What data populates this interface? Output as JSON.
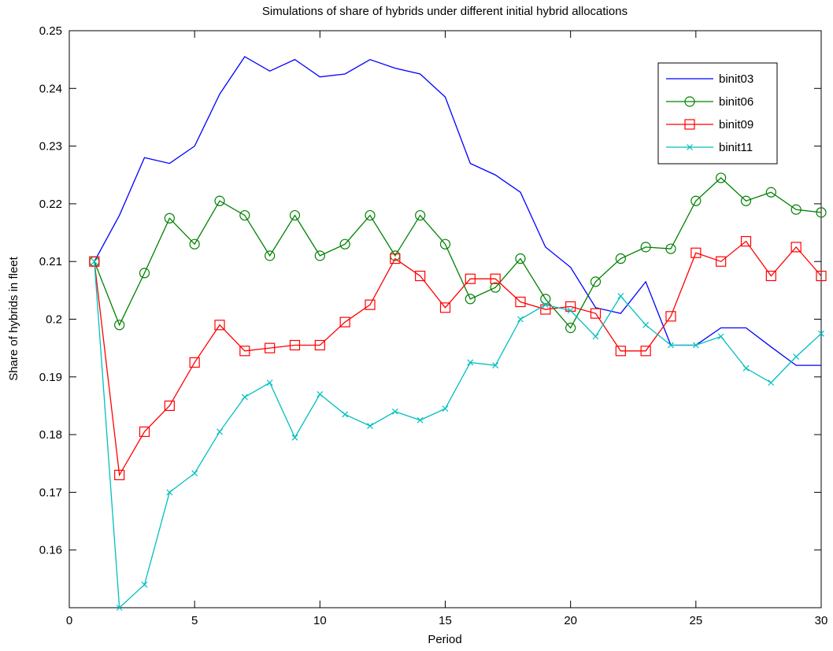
{
  "chart_data": {
    "type": "line",
    "title": "Simulations of share of hybrids under different initial hybrid allocations",
    "xlabel": "Period",
    "ylabel": "Share of hybrids in fleet",
    "xlim": [
      0,
      30
    ],
    "ylim": [
      0.15,
      0.25
    ],
    "xticks": [
      0,
      5,
      10,
      15,
      20,
      25,
      30
    ],
    "xtick_labels": [
      "0",
      "5",
      "10",
      "15",
      "20",
      "25",
      "30"
    ],
    "yticks": [
      0.16,
      0.17,
      0.18,
      0.19,
      0.2,
      0.21,
      0.22,
      0.23,
      0.24,
      0.25
    ],
    "ytick_labels": [
      "0.16",
      "0.17",
      "0.18",
      "0.19",
      "0.2",
      "0.21",
      "0.22",
      "0.23",
      "0.24",
      "0.25"
    ],
    "grid": false,
    "legend_position": "top-right",
    "x": [
      1,
      2,
      3,
      4,
      5,
      6,
      7,
      8,
      9,
      10,
      11,
      12,
      13,
      14,
      15,
      16,
      17,
      18,
      19,
      20,
      21,
      22,
      23,
      24,
      25,
      26,
      27,
      28,
      29,
      30
    ],
    "series": [
      {
        "name": "binit03",
        "color": "#0000ff",
        "marker": "none",
        "values": [
          0.21,
          0.218,
          0.228,
          0.227,
          0.23,
          0.239,
          0.2455,
          0.243,
          0.245,
          0.242,
          0.2425,
          0.245,
          0.2435,
          0.2425,
          0.2385,
          0.227,
          0.225,
          0.222,
          0.2125,
          0.209,
          0.202,
          0.201,
          0.2065,
          0.1955,
          0.1955,
          0.1985,
          0.1985,
          0.1952,
          0.192,
          0.192
        ]
      },
      {
        "name": "binit06",
        "color": "#008000",
        "marker": "circle",
        "values": [
          0.21,
          0.199,
          0.208,
          0.2175,
          0.213,
          0.2205,
          0.218,
          0.211,
          0.218,
          0.211,
          0.213,
          0.218,
          0.211,
          0.218,
          0.213,
          0.2035,
          0.2055,
          0.2105,
          0.2035,
          0.1985,
          0.2065,
          0.2105,
          0.2125,
          0.2122,
          0.2205,
          0.2245,
          0.2205,
          0.222,
          0.219,
          0.2185
        ]
      },
      {
        "name": "binit09",
        "color": "#ff0000",
        "marker": "square",
        "values": [
          0.21,
          0.173,
          0.1805,
          0.185,
          0.1925,
          0.199,
          0.1945,
          0.195,
          0.1955,
          0.1955,
          0.1995,
          0.2025,
          0.2105,
          0.2075,
          0.202,
          0.207,
          0.207,
          0.203,
          0.2017,
          0.2022,
          0.201,
          0.1945,
          0.1945,
          0.2005,
          0.2115,
          0.21,
          0.2135,
          0.2075,
          0.2125,
          0.2075
        ]
      },
      {
        "name": "binit11",
        "color": "#00bfbf",
        "marker": "x",
        "values": [
          0.21,
          0.15,
          0.154,
          0.17,
          0.1733,
          0.1805,
          0.1865,
          0.189,
          0.1795,
          0.187,
          0.1835,
          0.1815,
          0.184,
          0.1825,
          0.1845,
          0.1925,
          0.192,
          0.2,
          0.2025,
          0.2015,
          0.197,
          0.204,
          0.199,
          0.1955,
          0.1955,
          0.197,
          0.1915,
          0.189,
          0.1935,
          0.1975
        ]
      }
    ]
  }
}
